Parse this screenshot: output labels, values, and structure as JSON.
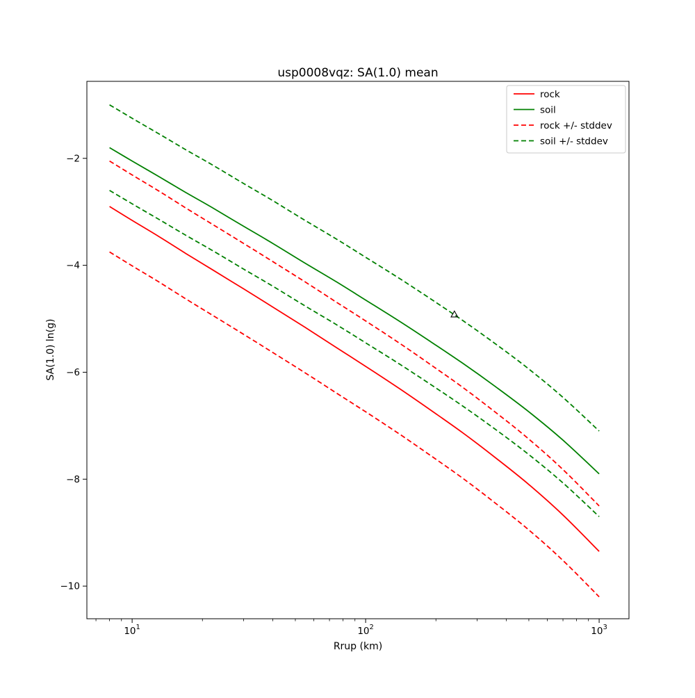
{
  "chart_data": {
    "type": "line",
    "title": "usp0008vqz: SA(1.0) mean",
    "xlabel": "Rrup (km)",
    "ylabel": "SA(1.0) ln(g)",
    "x_scale": "log",
    "y_scale": "linear",
    "xlim": [
      6.4,
      1342
    ],
    "ylim": [
      -10.61,
      -0.56
    ],
    "xticks": [
      10,
      100,
      1000
    ],
    "xtick_labels": [
      "10^1",
      "10^2",
      "10^3"
    ],
    "yticks": [
      -2,
      -4,
      -6,
      -8,
      -10
    ],
    "ytick_labels": [
      "−2",
      "−4",
      "−6",
      "−8",
      "−10"
    ],
    "grid": false,
    "colors": {
      "rock": "#ff0000",
      "soil": "#008000",
      "marker": "#000000",
      "legend_border": "#c9c9c9"
    },
    "legend": {
      "position": "upper-right",
      "entries": [
        "rock",
        "soil",
        "rock +/- stddev",
        "soil +/- stddev"
      ]
    },
    "x": [
      8,
      10,
      13,
      17,
      22,
      30,
      40,
      55,
      75,
      100,
      140,
      190,
      260,
      360,
      500,
      700,
      1000
    ],
    "series": [
      {
        "name": "rock",
        "legend": true,
        "color": "#ff0000",
        "style": "solid",
        "values": [
          -2.9,
          -3.16,
          -3.46,
          -3.78,
          -4.08,
          -4.44,
          -4.78,
          -5.16,
          -5.54,
          -5.89,
          -6.31,
          -6.71,
          -7.13,
          -7.6,
          -8.1,
          -8.67,
          -9.35
        ]
      },
      {
        "name": "soil",
        "legend": true,
        "color": "#008000",
        "style": "solid",
        "values": [
          -1.8,
          -2.05,
          -2.34,
          -2.64,
          -2.92,
          -3.27,
          -3.59,
          -3.96,
          -4.31,
          -4.65,
          -5.05,
          -5.43,
          -5.83,
          -6.27,
          -6.74,
          -7.27,
          -7.9
        ]
      },
      {
        "name": "rock +/- stddev",
        "legend": true,
        "color": "#ff0000",
        "style": "dashed",
        "values": [
          -2.05,
          -2.31,
          -2.61,
          -2.93,
          -3.23,
          -3.59,
          -3.93,
          -4.31,
          -4.69,
          -5.04,
          -5.46,
          -5.86,
          -6.28,
          -6.75,
          -7.25,
          -7.82,
          -8.5
        ]
      },
      {
        "name": "rock - stddev",
        "legend": false,
        "color": "#ff0000",
        "style": "dashed",
        "values": [
          -3.75,
          -4.01,
          -4.31,
          -4.63,
          -4.93,
          -5.29,
          -5.63,
          -6.01,
          -6.39,
          -6.74,
          -7.16,
          -7.56,
          -7.98,
          -8.45,
          -8.95,
          -9.52,
          -10.2
        ]
      },
      {
        "name": "soil +/- stddev",
        "legend": true,
        "color": "#008000",
        "style": "dashed",
        "values": [
          -1.0,
          -1.25,
          -1.54,
          -1.84,
          -2.12,
          -2.47,
          -2.79,
          -3.16,
          -3.51,
          -3.85,
          -4.25,
          -4.63,
          -5.03,
          -5.47,
          -5.94,
          -6.47,
          -7.1
        ]
      },
      {
        "name": "soil - stddev",
        "legend": false,
        "color": "#008000",
        "style": "dashed",
        "values": [
          -2.6,
          -2.85,
          -3.14,
          -3.44,
          -3.72,
          -4.07,
          -4.39,
          -4.76,
          -5.11,
          -5.45,
          -5.85,
          -6.23,
          -6.63,
          -7.07,
          -7.54,
          -8.07,
          -8.7
        ]
      }
    ],
    "marker": {
      "shape": "triangle-up",
      "x": 240,
      "y": -4.92,
      "color": "#000000",
      "filled": false
    }
  }
}
